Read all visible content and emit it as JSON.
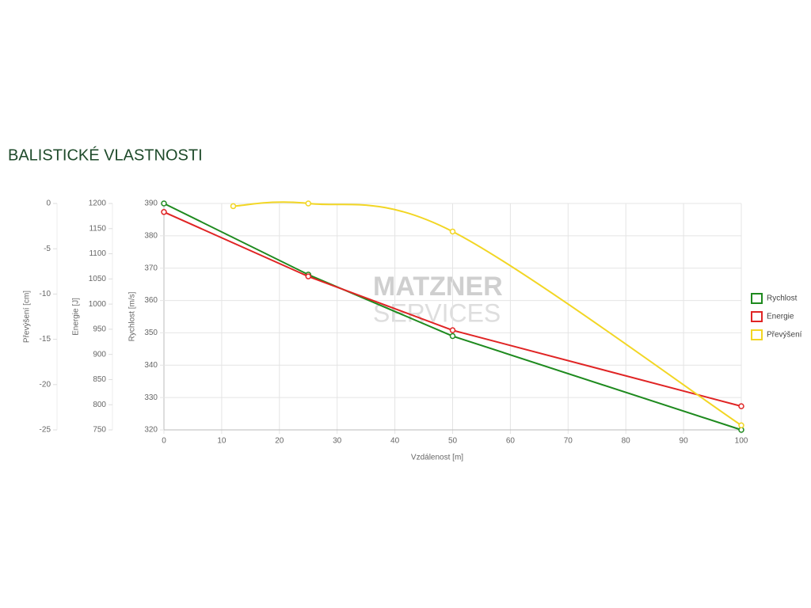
{
  "chart_data": {
    "type": "line",
    "title": "BALISTICKÉ VLASTNOSTI",
    "x_label": "Vzdálenost [m]",
    "xlim": [
      0,
      100
    ],
    "xticks": [
      0,
      10,
      20,
      30,
      40,
      50,
      60,
      70,
      80,
      90,
      100
    ],
    "y_label": "Rychlost [m/s]",
    "ylim": [
      320,
      390
    ],
    "yticks": [
      320,
      330,
      340,
      350,
      360,
      370,
      380,
      390
    ],
    "y2_label": "Energie [J]",
    "y2lim": [
      750,
      1200
    ],
    "y2ticks": [
      750,
      800,
      850,
      900,
      950,
      1000,
      1050,
      1100,
      1150,
      1200
    ],
    "y3_label": "Převýšení [cm]",
    "y3lim": [
      -25,
      0
    ],
    "y3ticks": [
      -25,
      -20,
      -15,
      -10,
      -5,
      0
    ],
    "grid": true,
    "watermark": [
      "MATZNER",
      "SERVICES"
    ],
    "series": [
      {
        "name": "Rychlost",
        "color": "#1e8a1e",
        "axis": "y",
        "x": [
          0,
          25,
          50,
          100
        ],
        "values": [
          390,
          368,
          349,
          320
        ]
      },
      {
        "name": "Energie",
        "color": "#e02424",
        "axis": "y2",
        "x": [
          0,
          25,
          50,
          100
        ],
        "values": [
          1183,
          1055,
          948,
          797
        ]
      },
      {
        "name": "Převýšení",
        "color": "#f2d624",
        "axis": "y3",
        "smooth": true,
        "x": [
          12,
          25,
          50,
          100
        ],
        "values": [
          -0.3,
          0,
          -3.1,
          -24.5
        ]
      }
    ]
  }
}
